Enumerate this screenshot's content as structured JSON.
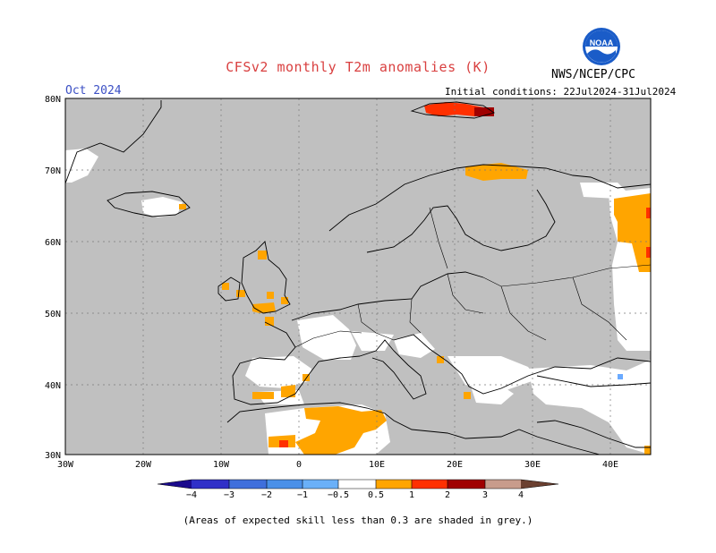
{
  "header": {
    "title": "CFSv2 monthly T2m anomalies (K)",
    "agency": "NWS/NCEP/CPC",
    "month": "Oct 2024",
    "initial_conditions": "Initial conditions: 22Jul2024-31Jul2024",
    "logo_text": "NOAA"
  },
  "map": {
    "lat_labels": [
      "80N",
      "70N",
      "60N",
      "50N",
      "40N",
      "30N"
    ],
    "lon_labels": [
      "30W",
      "20W",
      "10W",
      "0",
      "10E",
      "20E",
      "30E",
      "40E"
    ],
    "grey_meaning": "low skill",
    "colors": {
      "grey": "#c0c0c0",
      "white": "#ffffff",
      "orange": "#ffa500",
      "red": "#ff3000",
      "darkred": "#a00000",
      "lightblue": "#6aaaff"
    }
  },
  "colorbar": {
    "tick_labels": [
      "−4",
      "−3",
      "−2",
      "−1",
      "−0.5",
      "0.5",
      "1",
      "2",
      "3",
      "4"
    ],
    "colors": [
      "#1a0a8c",
      "#3030c8",
      "#3f6fdc",
      "#4a90e8",
      "#6ab0f8",
      "#ffffff",
      "#ffa500",
      "#ff3000",
      "#e81818",
      "#a00000",
      "#c89c8c",
      "#6b4030"
    ]
  },
  "footnote": "(Areas of expected skill less than 0.3 are shaded in grey.)"
}
